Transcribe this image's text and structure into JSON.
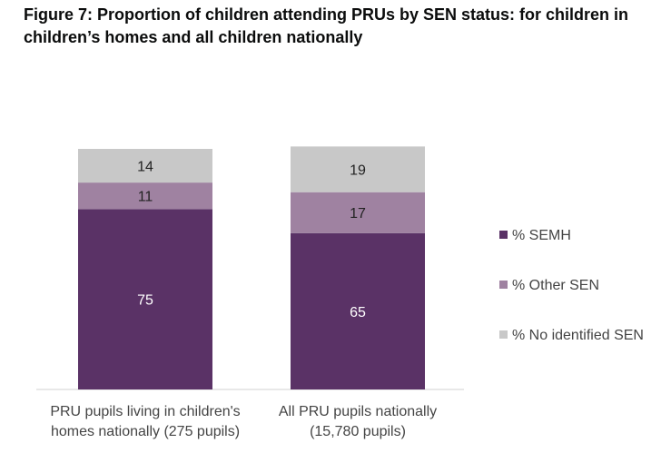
{
  "figure": {
    "title": "Figure 7: Proportion of children attending PRUs by SEN status: for children in children’s homes and all children nationally"
  },
  "chart_data": {
    "type": "bar",
    "stacked": true,
    "percent_stacked": true,
    "categories": [
      [
        "PRU pupils living in children's",
        "homes nationally (275 pupils)"
      ],
      [
        "All PRU pupils nationally",
        "(15,780 pupils)"
      ]
    ],
    "series": [
      {
        "name": "% SEMH",
        "values": [
          75,
          65
        ],
        "color": "#5a3266",
        "label_color": "#ffffff"
      },
      {
        "name": "% Other SEN",
        "values": [
          11,
          17
        ],
        "color": "#9f82a1",
        "label_color": "#222222"
      },
      {
        "name": "% No identified SEN",
        "values": [
          14,
          19
        ],
        "color": "#c8c8c8",
        "label_color": "#222222"
      }
    ],
    "ylim": [
      0,
      100
    ],
    "grid": false,
    "legend_position": "right"
  }
}
